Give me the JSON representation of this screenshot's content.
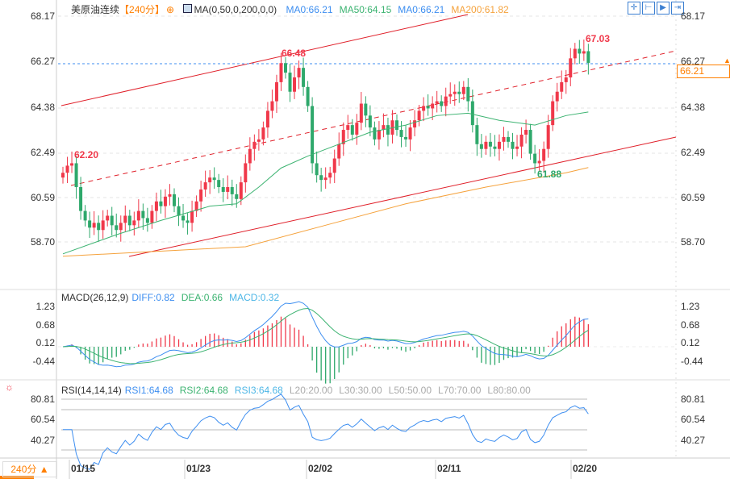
{
  "header": {
    "instrument": "美原油连续",
    "period": "【240分】",
    "period_icon": "crosshair-circle-icon",
    "ma_label": "MA(0,50,0,200,0,0)",
    "ma0": "MA0:66.21",
    "ma50": "MA50:64.15",
    "ma0b": "MA0:66.21",
    "ma200": "MA200:61.82"
  },
  "toolbar": {
    "icons": [
      "crosshair-icon",
      "fit-range-icon",
      "zoom-to-icon",
      "go-latest-icon"
    ]
  },
  "price_axis": {
    "ticks": [
      "68.17",
      "66.27",
      "64.38",
      "62.49",
      "60.59",
      "58.70"
    ],
    "current_price": "66.21"
  },
  "annotations": {
    "high1": "66.48",
    "low1": "62.20",
    "high2": "67.03",
    "low2": "61.88"
  },
  "macd": {
    "label": "MACD(26,12,9)",
    "diff": "DIFF:0.82",
    "dea": "DEA:0.66",
    "macd": "MACD:0.32",
    "ticks": [
      "1.23",
      "0.68",
      "0.12",
      "-0.44"
    ]
  },
  "rsi": {
    "label": "RSI(14,14,14)",
    "rsi1": "RSI1:64.68",
    "rsi2": "RSI2:64.68",
    "rsi3": "RSI3:64.68",
    "l20": "L20:20.00",
    "l30": "L30:30.00",
    "l50": "L50:50.00",
    "l70": "L70:70.00",
    "l80": "L80:80.00",
    "ticks": [
      "80.81",
      "60.54",
      "40.27"
    ]
  },
  "footer": {
    "period_button": "240分 ▲",
    "dates": [
      "01/15",
      "01/23",
      "02/02",
      "02/11",
      "02/20"
    ]
  },
  "colors": {
    "up": "#f0384a",
    "down": "#2ea86b",
    "ma50": "#3cb371",
    "ma200": "#f5a23c",
    "diff": "#3d8ef0",
    "dea": "#3cb371",
    "accent": "#ff7f00"
  },
  "chart_data": {
    "type": "candlestick",
    "ylim": [
      58.2,
      68.6
    ],
    "closes": [
      61.6,
      61.9,
      62.0,
      61.0,
      60.0,
      59.6,
      59.3,
      59.5,
      59.2,
      59.6,
      59.8,
      59.4,
      59.2,
      59.5,
      59.8,
      59.4,
      59.6,
      60.0,
      59.7,
      59.5,
      60.0,
      60.4,
      60.2,
      60.6,
      60.7,
      60.2,
      59.8,
      59.6,
      59.5,
      60.0,
      60.4,
      60.9,
      61.2,
      61.4,
      61.3,
      61.0,
      60.8,
      61.0,
      60.7,
      60.5,
      61.2,
      62.0,
      62.6,
      62.9,
      63.0,
      63.5,
      64.2,
      64.6,
      65.4,
      66.2,
      65.8,
      65.0,
      65.6,
      66.0,
      65.2,
      64.4,
      62.0,
      61.5,
      61.3,
      61.4,
      61.6,
      62.2,
      62.8,
      63.4,
      63.6,
      63.2,
      63.7,
      64.5,
      64.0,
      63.5,
      63.0,
      63.4,
      63.6,
      63.2,
      63.8,
      63.4,
      63.1,
      63.0,
      63.5,
      63.8,
      64.2,
      64.4,
      64.3,
      64.5,
      64.6,
      64.4,
      64.8,
      64.9,
      65.0,
      64.9,
      65.2,
      64.6,
      63.6,
      62.8,
      62.6,
      62.9,
      62.7,
      62.6,
      62.9,
      63.1,
      62.9,
      62.6,
      62.7,
      63.2,
      63.4,
      62.4,
      62.0,
      62.1,
      62.6,
      63.6,
      64.6,
      65.0,
      65.4,
      65.6,
      66.4,
      66.8,
      66.6,
      66.7,
      66.21
    ],
    "ma50": [
      [
        0,
        58.2
      ],
      [
        12,
        59.0
      ],
      [
        22,
        59.6
      ],
      [
        33,
        60.2
      ],
      [
        39,
        60.3
      ],
      [
        44,
        61.0
      ],
      [
        49,
        61.8
      ],
      [
        55,
        62.3
      ],
      [
        62,
        62.8
      ],
      [
        69,
        63.3
      ],
      [
        77,
        63.6
      ],
      [
        84,
        64.0
      ],
      [
        91,
        64.1
      ],
      [
        98,
        63.8
      ],
      [
        106,
        63.6
      ],
      [
        113,
        64.0
      ],
      [
        118,
        64.15
      ]
    ],
    "ma200": [
      [
        0,
        58.1
      ],
      [
        41,
        58.5
      ],
      [
        59,
        59.4
      ],
      [
        77,
        60.3
      ],
      [
        95,
        61.0
      ],
      [
        113,
        61.6
      ],
      [
        118,
        61.82
      ]
    ]
  }
}
